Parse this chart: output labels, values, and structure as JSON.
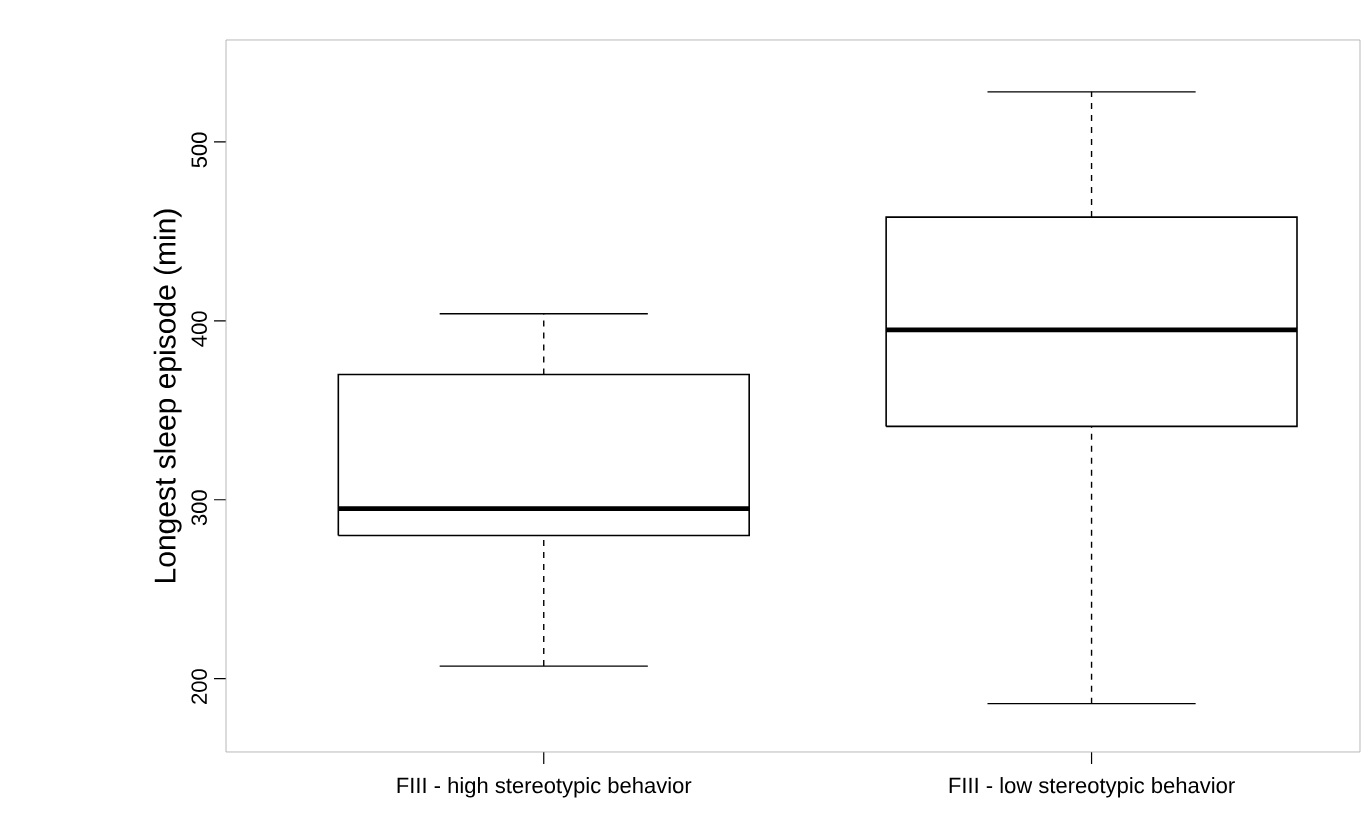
{
  "chart_data": {
    "type": "box",
    "ylabel": "Longest sleep episode (min)",
    "categories": [
      "FIII - high stereotypic behavior",
      "FIII - low stereotypic behavior"
    ],
    "boxes": [
      {
        "low": 207,
        "q1": 280,
        "median": 295,
        "q3": 370,
        "high": 404
      },
      {
        "low": 186,
        "q1": 341,
        "median": 395,
        "q3": 458,
        "high": 528
      }
    ],
    "ylim": [
      159,
      557
    ],
    "yticks": [
      200,
      300,
      400,
      500
    ],
    "grid": false
  }
}
